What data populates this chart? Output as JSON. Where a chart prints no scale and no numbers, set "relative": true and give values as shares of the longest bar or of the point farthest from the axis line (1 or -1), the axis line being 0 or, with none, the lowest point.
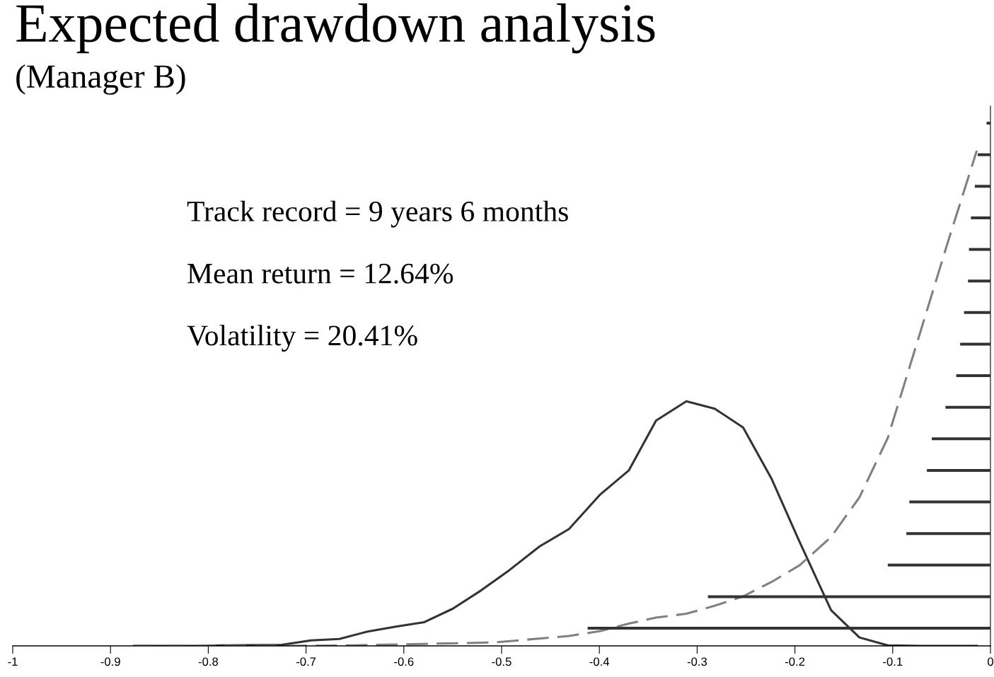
{
  "chart_data": [
    {
      "type": "line",
      "title": "Expected drawdown analysis",
      "subtitle": "(Manager B)",
      "relative": true,
      "xlim": [
        -1,
        0
      ],
      "xticks": [
        -1,
        -0.9,
        -0.8,
        -0.7,
        -0.6,
        -0.5,
        -0.4,
        -0.3,
        -0.2,
        -0.1,
        0
      ],
      "grid": false,
      "legend": false,
      "marker": "none",
      "annotations": [
        "Track record = 9 years 6 months",
        "Mean return = 12.64%",
        "Volatility = 20.41%"
      ],
      "series": [
        {
          "color": "#333333",
          "line_style": "solid",
          "x": [
            -0.876,
            -0.812,
            -0.785,
            -0.725,
            -0.695,
            -0.666,
            -0.637,
            -0.608,
            -0.579,
            -0.55,
            -0.521,
            -0.492,
            -0.461,
            -0.431,
            -0.399,
            -0.37,
            -0.342,
            -0.311,
            -0.282,
            -0.253,
            -0.224,
            -0.195,
            -0.163,
            -0.134,
            -0.105,
            -0.072,
            -0.014
          ],
          "values": [
            0,
            0,
            0.001,
            0.002,
            0.011,
            0.014,
            0.029,
            0.039,
            0.048,
            0.075,
            0.112,
            0.153,
            0.201,
            0.236,
            0.306,
            0.354,
            0.455,
            0.494,
            0.479,
            0.441,
            0.338,
            0.209,
            0.072,
            0.017,
            0.001,
            0,
            0
          ]
        },
        {
          "color": "#808080",
          "line_style": "dashed",
          "x": [
            -0.876,
            -0.709,
            -0.651,
            -0.579,
            -0.507,
            -0.431,
            -0.399,
            -0.37,
            -0.342,
            -0.311,
            -0.282,
            -0.253,
            -0.224,
            -0.195,
            -0.163,
            -0.134,
            -0.105,
            -0.072,
            -0.043,
            -0.014
          ],
          "values": [
            0,
            0,
            0.001,
            0.004,
            0.007,
            0.02,
            0.03,
            0.045,
            0.057,
            0.065,
            0.081,
            0.1,
            0.129,
            0.163,
            0.22,
            0.3,
            0.42,
            0.632,
            0.819,
            1.0
          ]
        }
      ]
    },
    {
      "type": "bar",
      "orientation": "horizontal",
      "xlim": [
        -1,
        0
      ],
      "tick_labels": false,
      "color": "#333333",
      "categories": [
        null,
        null,
        null,
        null,
        null,
        null,
        null,
        null,
        null,
        null,
        null,
        null,
        null,
        null,
        null,
        null,
        null
      ],
      "values": [
        -0.004,
        -0.013,
        -0.016,
        -0.02,
        -0.022,
        -0.023,
        -0.027,
        -0.031,
        -0.035,
        -0.046,
        -0.06,
        -0.065,
        -0.083,
        -0.086,
        -0.105,
        -0.289,
        -0.412
      ]
    }
  ]
}
